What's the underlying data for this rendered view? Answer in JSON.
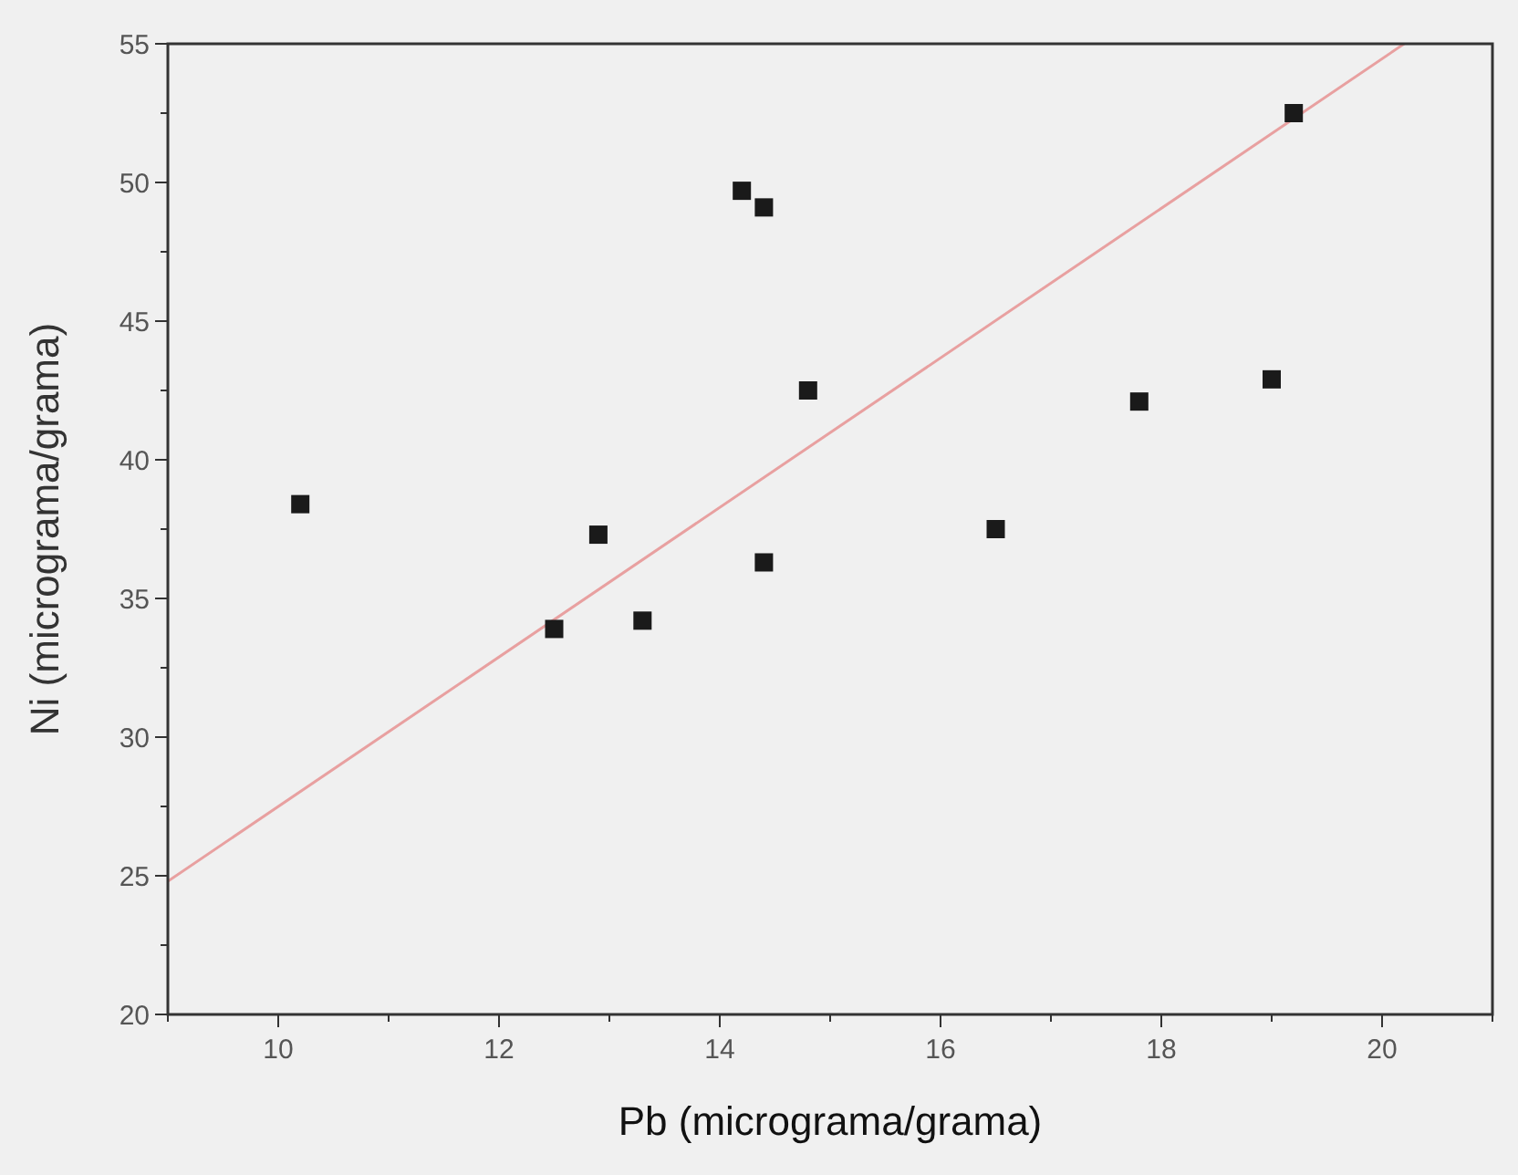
{
  "chart_data": {
    "type": "scatter",
    "xlabel": "Pb (micrograma/grama)",
    "ylabel": "Ni (micrograma/grama)",
    "xlim": [
      9,
      21
    ],
    "ylim": [
      20,
      55
    ],
    "xticks": [
      {
        "value": 9,
        "label": null
      },
      10,
      {
        "value": 11,
        "label": null
      },
      12,
      {
        "value": 13,
        "label": null
      },
      14,
      {
        "value": 15,
        "label": null
      },
      16,
      {
        "value": 17,
        "label": null
      },
      18,
      {
        "value": 19,
        "label": null
      },
      20,
      {
        "value": 21,
        "label": null
      }
    ],
    "yticks": [
      20,
      {
        "value": 22.5,
        "label": null
      },
      25,
      {
        "value": 27.5,
        "label": null
      },
      30,
      {
        "value": 32.5,
        "label": null
      },
      35,
      {
        "value": 37.5,
        "label": null
      },
      40,
      {
        "value": 42.5,
        "label": null
      },
      45,
      {
        "value": 47.5,
        "label": null
      },
      50,
      {
        "value": 52.5,
        "label": null
      },
      55
    ],
    "grid": false,
    "marker": "square",
    "series": [
      {
        "color": "#1a1a1a",
        "x": [
          10.2,
          12.5,
          12.9,
          13.3,
          14.2,
          14.4,
          14.4,
          14.8,
          16.5,
          17.8,
          19.0,
          19.2
        ],
        "values": [
          38.4,
          33.9,
          37.3,
          34.2,
          49.7,
          49.1,
          36.3,
          42.5,
          37.5,
          42.1,
          42.9,
          52.5
        ]
      },
      {
        "type": "line",
        "color": "#e8a0a0",
        "marker": "none",
        "x": [
          9,
          20.2
        ],
        "values": [
          24.8,
          55
        ]
      }
    ]
  }
}
